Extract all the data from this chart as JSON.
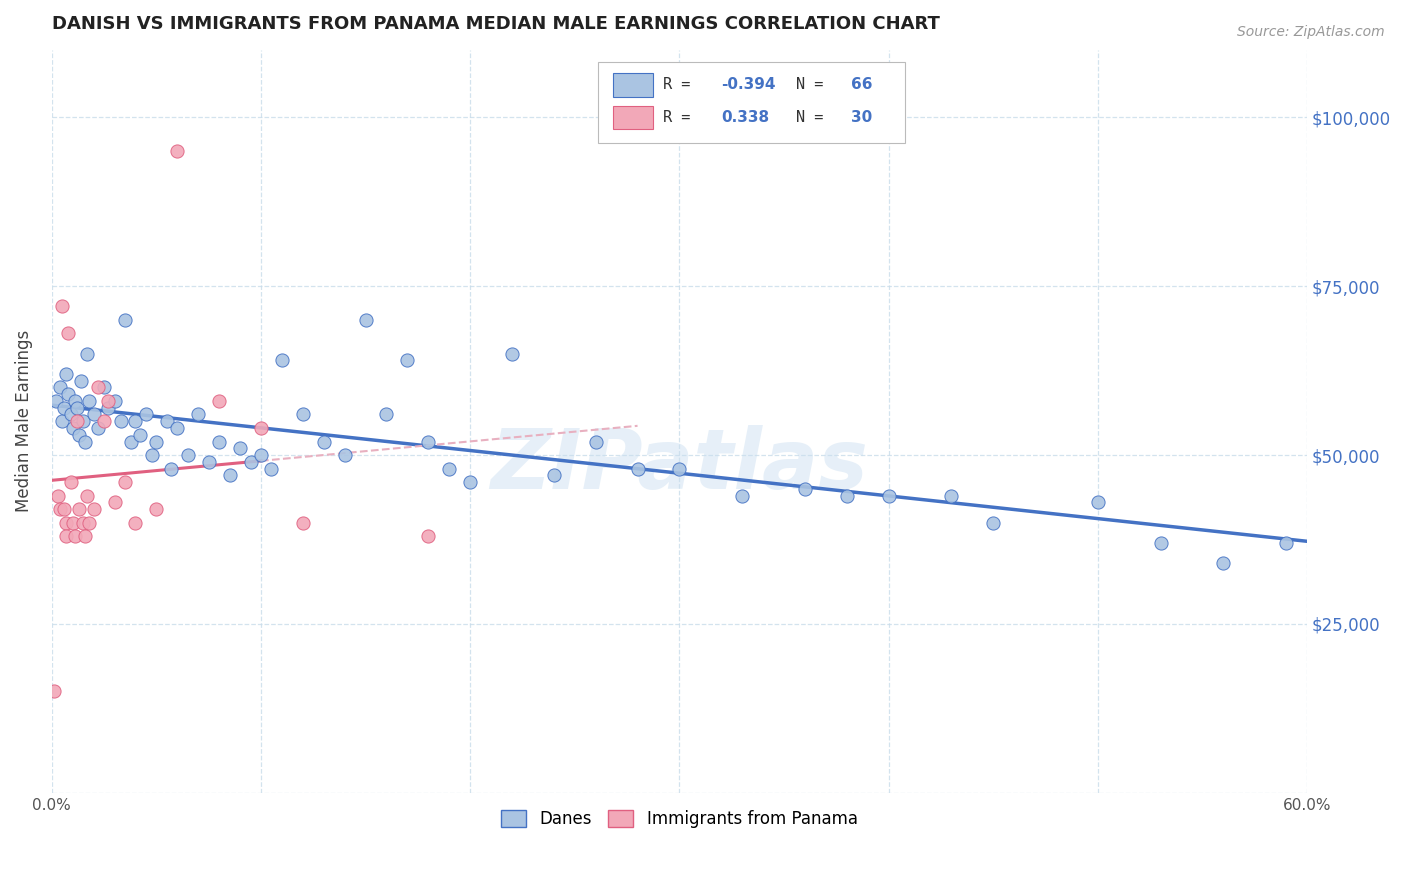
{
  "title": "DANISH VS IMMIGRANTS FROM PANAMA MEDIAN MALE EARNINGS CORRELATION CHART",
  "source": "Source: ZipAtlas.com",
  "ylabel": "Median Male Earnings",
  "watermark": "ZIPatlas",
  "xlim": [
    0.0,
    0.6
  ],
  "ylim": [
    0,
    110000
  ],
  "yticks": [
    0,
    25000,
    50000,
    75000,
    100000
  ],
  "ytick_labels": [
    "",
    "$25,000",
    "$50,000",
    "$75,000",
    "$100,000"
  ],
  "xticks": [
    0.0,
    0.1,
    0.2,
    0.3,
    0.4,
    0.5,
    0.6
  ],
  "xtick_labels": [
    "0.0%",
    "",
    "",
    "",
    "",
    "",
    "60.0%"
  ],
  "danes_R": -0.394,
  "danes_N": 66,
  "panama_R": 0.338,
  "panama_N": 30,
  "danes_color": "#aac4e2",
  "panama_color": "#f2a8b8",
  "danes_line_color": "#4472c4",
  "panama_line_color": "#e06080",
  "danes_x": [
    0.002,
    0.004,
    0.005,
    0.006,
    0.007,
    0.008,
    0.009,
    0.01,
    0.011,
    0.012,
    0.013,
    0.014,
    0.015,
    0.016,
    0.017,
    0.018,
    0.02,
    0.022,
    0.025,
    0.027,
    0.03,
    0.033,
    0.035,
    0.038,
    0.04,
    0.042,
    0.045,
    0.048,
    0.05,
    0.055,
    0.057,
    0.06,
    0.065,
    0.07,
    0.075,
    0.08,
    0.085,
    0.09,
    0.095,
    0.1,
    0.105,
    0.11,
    0.12,
    0.13,
    0.14,
    0.15,
    0.16,
    0.17,
    0.18,
    0.19,
    0.2,
    0.22,
    0.24,
    0.26,
    0.28,
    0.3,
    0.33,
    0.36,
    0.38,
    0.4,
    0.43,
    0.45,
    0.5,
    0.53,
    0.56,
    0.59
  ],
  "danes_y": [
    58000,
    60000,
    55000,
    57000,
    62000,
    59000,
    56000,
    54000,
    58000,
    57000,
    53000,
    61000,
    55000,
    52000,
    65000,
    58000,
    56000,
    54000,
    60000,
    57000,
    58000,
    55000,
    70000,
    52000,
    55000,
    53000,
    56000,
    50000,
    52000,
    55000,
    48000,
    54000,
    50000,
    56000,
    49000,
    52000,
    47000,
    51000,
    49000,
    50000,
    48000,
    64000,
    56000,
    52000,
    50000,
    70000,
    56000,
    64000,
    52000,
    48000,
    46000,
    65000,
    47000,
    52000,
    48000,
    48000,
    44000,
    45000,
    44000,
    44000,
    44000,
    40000,
    43000,
    37000,
    34000,
    37000
  ],
  "panama_x": [
    0.001,
    0.003,
    0.004,
    0.005,
    0.006,
    0.007,
    0.007,
    0.008,
    0.009,
    0.01,
    0.011,
    0.012,
    0.013,
    0.015,
    0.016,
    0.017,
    0.018,
    0.02,
    0.022,
    0.025,
    0.027,
    0.03,
    0.035,
    0.04,
    0.05,
    0.06,
    0.08,
    0.1,
    0.12,
    0.18
  ],
  "panama_y": [
    15000,
    44000,
    42000,
    72000,
    42000,
    40000,
    38000,
    68000,
    46000,
    40000,
    38000,
    55000,
    42000,
    40000,
    38000,
    44000,
    40000,
    42000,
    60000,
    55000,
    58000,
    43000,
    46000,
    40000,
    42000,
    95000,
    58000,
    54000,
    40000,
    38000
  ]
}
